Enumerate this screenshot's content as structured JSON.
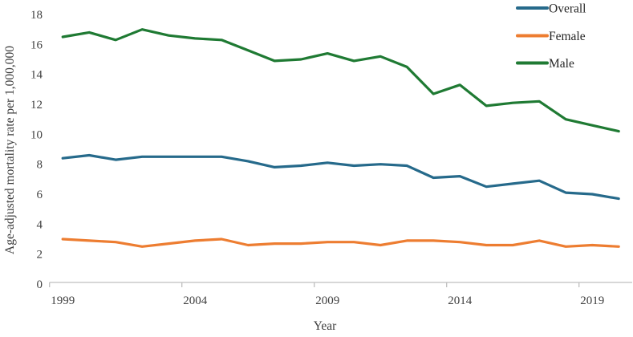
{
  "chart_data": {
    "type": "line",
    "title": "",
    "xlabel": "Year",
    "ylabel": "Age-adjusted mortality rate per 1,000,000",
    "x": [
      1999,
      2000,
      2001,
      2002,
      2003,
      2004,
      2005,
      2006,
      2007,
      2008,
      2009,
      2010,
      2011,
      2012,
      2013,
      2014,
      2015,
      2016,
      2017,
      2018,
      2019,
      2020
    ],
    "series": [
      {
        "name": "Overall",
        "color": "#266A8B",
        "values": [
          8.4,
          8.6,
          8.3,
          8.5,
          8.5,
          8.5,
          8.5,
          8.2,
          7.8,
          7.9,
          8.1,
          7.9,
          8.0,
          7.9,
          7.1,
          7.2,
          6.5,
          6.7,
          6.9,
          6.1,
          6.0,
          5.7
        ]
      },
      {
        "name": "Female",
        "color": "#ED7D31",
        "values": [
          3.0,
          2.9,
          2.8,
          2.5,
          2.7,
          2.9,
          3.0,
          2.6,
          2.7,
          2.7,
          2.8,
          2.8,
          2.6,
          2.9,
          2.9,
          2.8,
          2.6,
          2.6,
          2.9,
          2.5,
          2.6,
          2.5
        ]
      },
      {
        "name": "Male",
        "color": "#1F7A33",
        "values": [
          16.5,
          16.8,
          16.3,
          17.0,
          16.6,
          16.4,
          16.3,
          15.6,
          14.9,
          15.0,
          15.4,
          14.9,
          15.2,
          14.5,
          12.7,
          13.3,
          11.9,
          12.1,
          12.2,
          11.0,
          10.6,
          10.2
        ]
      }
    ],
    "ylim": [
      0,
      18
    ],
    "ytick_step": 2,
    "xticks": [
      1999,
      2004,
      2009,
      2014,
      2019
    ],
    "grid": false,
    "legend_position": "top-right",
    "axis_color": "#BFBFBF",
    "tick_label_color": "#404040"
  }
}
